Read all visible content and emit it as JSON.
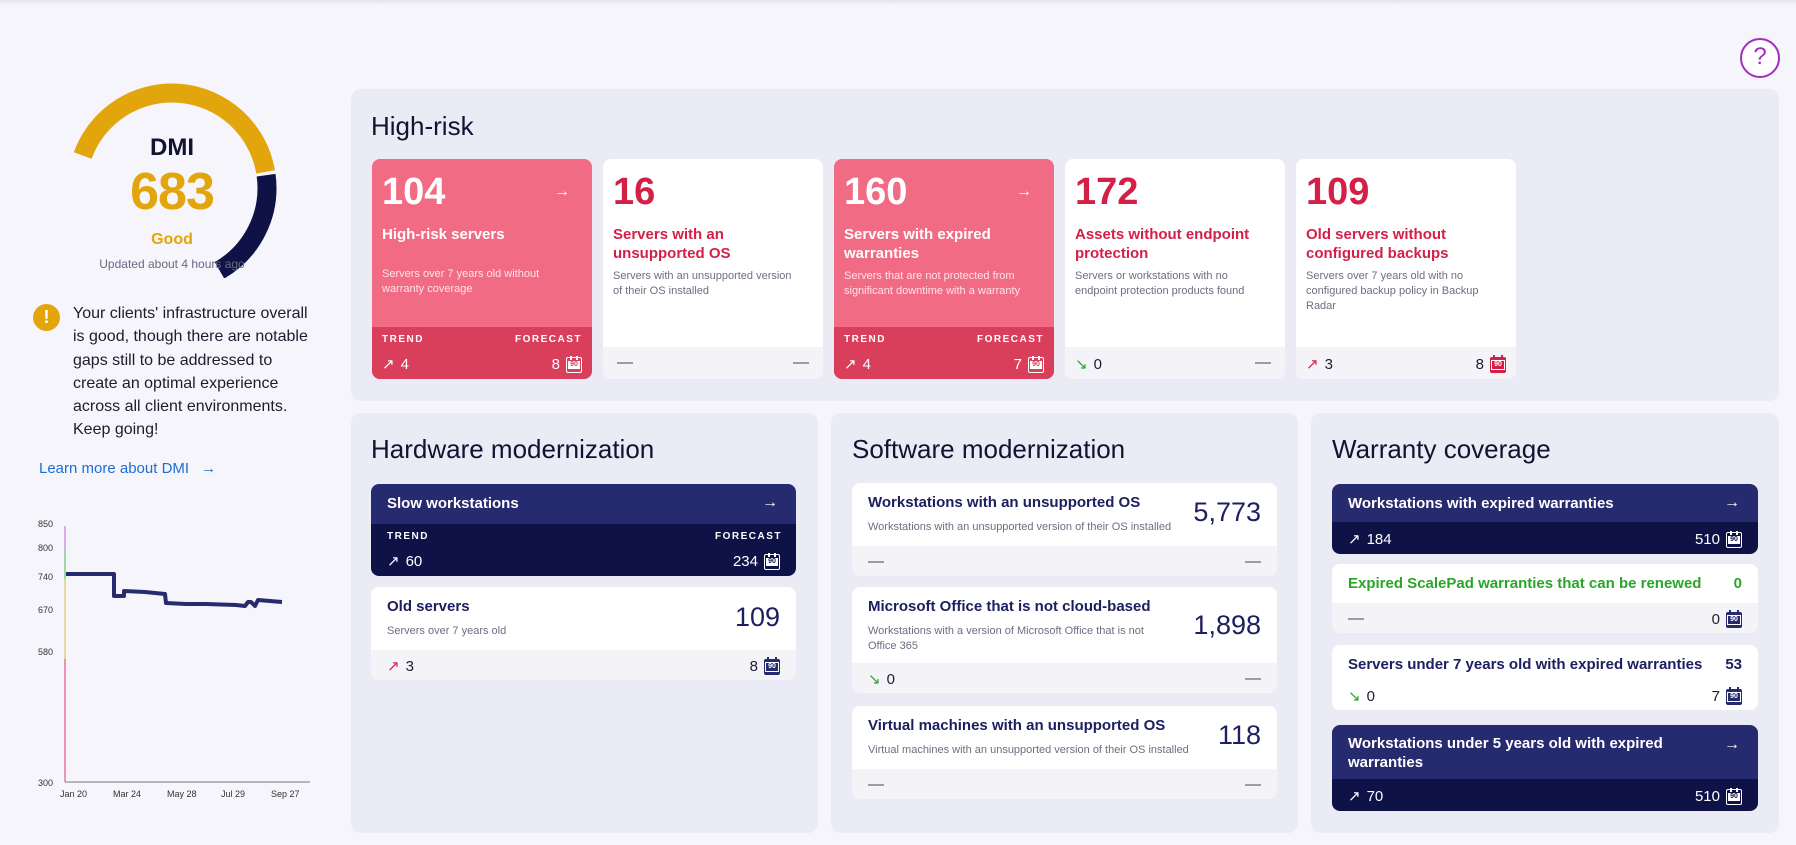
{
  "help_label": "?",
  "dmi": {
    "title": "DMI",
    "score": "683",
    "rating": "Good",
    "updated": "Updated about 4 hours ago",
    "gauge_fraction": 0.683,
    "colors": {
      "good": "#e3a50c",
      "remainder": "#0e1247"
    },
    "message": "Your clients' infrastructure overall is good, though there are notable gaps still to be addressed to create an optimal experience across all client environments. Keep going!",
    "learn_more": "Learn more about DMI",
    "history": {
      "y_ticks": [
        "850",
        "800",
        "740",
        "670",
        "580",
        "300"
      ],
      "x_ticks": [
        "Jan 20",
        "Mar 24",
        "May 28",
        "Jul 29",
        "Sep 27"
      ]
    }
  },
  "labels": {
    "trend": "TREND",
    "forecast": "FORECAST"
  },
  "high_risk": {
    "title": "High-risk",
    "cards": [
      {
        "value": "104",
        "title": "High-risk servers",
        "desc": "Servers over 7 years old without warranty coverage",
        "trend": "4",
        "forecast": "8"
      },
      {
        "value": "16",
        "title": "Servers with an unsupported OS",
        "desc": "Servers with an unsupported version of their OS installed"
      },
      {
        "value": "160",
        "title": "Servers with expired warranties",
        "desc": "Servers that are not protected from significant downtime with a warranty",
        "trend": "4",
        "forecast": "7"
      },
      {
        "value": "172",
        "title": "Assets without endpoint protection",
        "desc": "Servers or workstations with no endpoint protection products found",
        "trend": "0"
      },
      {
        "value": "109",
        "title": "Old servers without configured backups",
        "desc": "Servers over 7 years old with no configured backup policy in Backup Radar",
        "trend": "3",
        "forecast": "8"
      }
    ]
  },
  "hardware": {
    "title": "Hardware modernization",
    "slow": {
      "title": "Slow workstations",
      "trend": "60",
      "forecast": "234"
    },
    "old": {
      "title": "Old servers",
      "desc": "Servers over 7 years old",
      "value": "109",
      "trend": "3",
      "forecast": "8"
    }
  },
  "software": {
    "title": "Software modernization",
    "items": [
      {
        "title": "Workstations with an unsupported OS",
        "desc": "Workstations with an unsupported version of their OS installed",
        "value": "5,773"
      },
      {
        "title": "Microsoft Office that is not cloud-based",
        "desc": "Workstations with a version of Microsoft Office that is not Office 365",
        "value": "1,898",
        "trend": "0"
      },
      {
        "title": "Virtual machines with an unsupported OS",
        "desc": "Virtual machines with an unsupported version of their OS installed",
        "value": "118"
      }
    ]
  },
  "warranty": {
    "title": "Warranty coverage",
    "expired_ws": {
      "title": "Workstations with expired warranties",
      "trend": "184",
      "forecast": "510"
    },
    "scalepad": {
      "title": "Expired ScalePad warranties that can be renewed",
      "value": "0",
      "forecast": "0"
    },
    "servers7": {
      "title": "Servers under 7 years old with expired warranties",
      "value": "53",
      "trend": "0",
      "forecast": "7"
    },
    "ws5": {
      "title": "Workstations under 5 years old with expired warranties",
      "trend": "70",
      "forecast": "510"
    }
  },
  "calendar_label": "90"
}
